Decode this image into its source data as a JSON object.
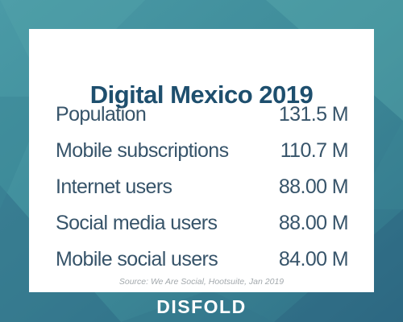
{
  "card": {
    "title": "Digital Mexico 2019",
    "rows": [
      {
        "label": "Population",
        "value": "131.5 M"
      },
      {
        "label": "Mobile subscriptions",
        "value": "110.7 M"
      },
      {
        "label": "Internet users",
        "value": "88.00 M"
      },
      {
        "label": "Social media users",
        "value": "88.00 M"
      },
      {
        "label": "Mobile social users",
        "value": "84.00 M"
      }
    ],
    "source": "Source: We Are Social, Hootsuite, Jan 2019"
  },
  "brand": {
    "name": "DISFOLD"
  },
  "colors": {
    "background": "#3d8c9c",
    "title": "#1e4f6e",
    "text": "#37546a",
    "source": "#a3a9ad",
    "brand": "#ffffff"
  }
}
